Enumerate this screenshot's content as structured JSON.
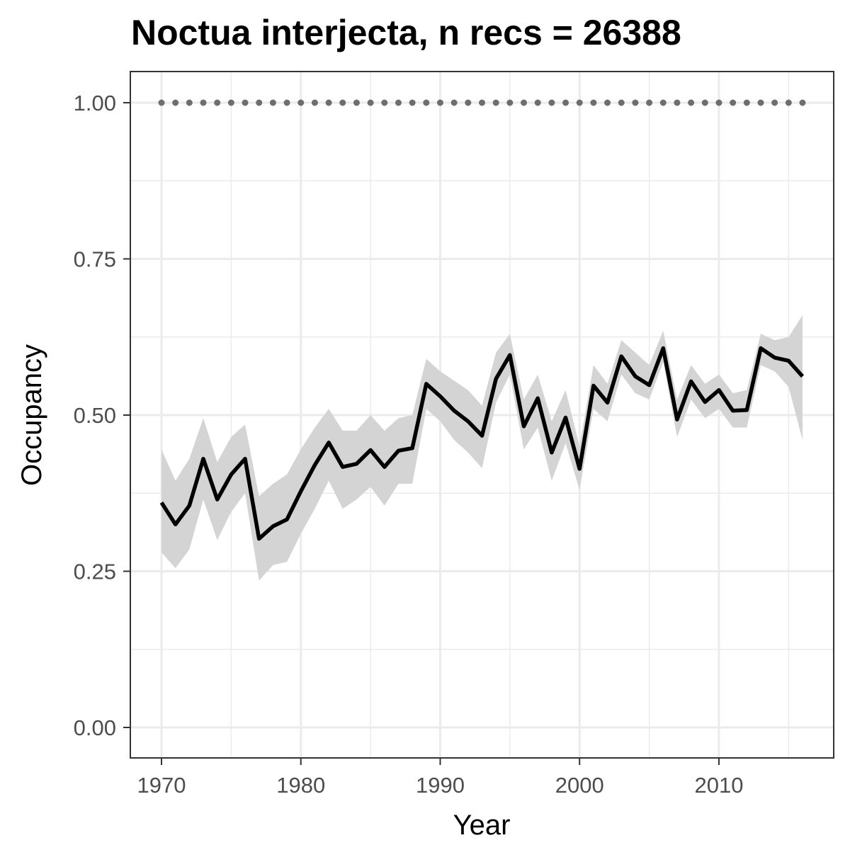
{
  "chart_data": {
    "type": "line",
    "title": "Noctua interjecta, n recs = 26388",
    "xlabel": "Year",
    "ylabel": "Occupancy",
    "xlim": [
      1970,
      2016
    ],
    "ylim": [
      0,
      1
    ],
    "x_ticks": [
      1970,
      1980,
      1990,
      2000,
      2010
    ],
    "x_tick_labels": [
      "1970",
      "1980",
      "1990",
      "2000",
      "2010"
    ],
    "y_ticks": [
      0,
      0.25,
      0.5,
      0.75,
      1
    ],
    "y_tick_labels": [
      "0.00",
      "0.25",
      "0.50",
      "0.75",
      "1.00"
    ],
    "grid": true,
    "colors": {
      "line": "#000000",
      "band": "#d4d4d4",
      "points": "#6e6e6e",
      "grid": "#ebebeb",
      "panel_border": "#333333"
    },
    "series": [
      {
        "style": "line-with-band",
        "x": [
          1970,
          1971,
          1972,
          1973,
          1974,
          1975,
          1976,
          1977,
          1978,
          1979,
          1980,
          1981,
          1982,
          1983,
          1984,
          1985,
          1986,
          1987,
          1988,
          1989,
          1990,
          1991,
          1992,
          1993,
          1994,
          1995,
          1996,
          1997,
          1998,
          1999,
          2000,
          2001,
          2002,
          2003,
          2004,
          2005,
          2006,
          2007,
          2008,
          2009,
          2010,
          2011,
          2012,
          2013,
          2014,
          2015,
          2016
        ],
        "y": [
          0.36,
          0.325,
          0.355,
          0.43,
          0.365,
          0.405,
          0.43,
          0.302,
          0.322,
          0.333,
          0.378,
          0.42,
          0.456,
          0.417,
          0.422,
          0.444,
          0.417,
          0.443,
          0.447,
          0.55,
          0.53,
          0.507,
          0.49,
          0.467,
          0.558,
          0.596,
          0.482,
          0.527,
          0.44,
          0.496,
          0.414,
          0.547,
          0.52,
          0.594,
          0.562,
          0.548,
          0.607,
          0.493,
          0.554,
          0.521,
          0.54,
          0.507,
          0.508,
          0.607,
          0.592,
          0.587,
          0.562
        ],
        "lower": [
          0.28,
          0.255,
          0.285,
          0.365,
          0.3,
          0.345,
          0.375,
          0.235,
          0.26,
          0.265,
          0.31,
          0.35,
          0.395,
          0.35,
          0.365,
          0.385,
          0.355,
          0.39,
          0.39,
          0.51,
          0.49,
          0.46,
          0.44,
          0.415,
          0.52,
          0.565,
          0.445,
          0.48,
          0.395,
          0.455,
          0.38,
          0.51,
          0.49,
          0.565,
          0.535,
          0.525,
          0.585,
          0.465,
          0.525,
          0.495,
          0.51,
          0.48,
          0.48,
          0.58,
          0.57,
          0.545,
          0.46
        ]
      },
      {
        "style": "points",
        "x": [
          1970,
          1971,
          1972,
          1973,
          1974,
          1975,
          1976,
          1977,
          1978,
          1979,
          1980,
          1981,
          1982,
          1983,
          1984,
          1985,
          1986,
          1987,
          1988,
          1989,
          1990,
          1991,
          1992,
          1993,
          1994,
          1995,
          1996,
          1997,
          1998,
          1999,
          2000,
          2001,
          2002,
          2003,
          2004,
          2005,
          2006,
          2007,
          2008,
          2009,
          2010,
          2011,
          2012,
          2013,
          2014,
          2015,
          2016
        ],
        "y": [
          1,
          1,
          1,
          1,
          1,
          1,
          1,
          1,
          1,
          1,
          1,
          1,
          1,
          1,
          1,
          1,
          1,
          1,
          1,
          1,
          1,
          1,
          1,
          1,
          1,
          1,
          1,
          1,
          1,
          1,
          1,
          1,
          1,
          1,
          1,
          1,
          1,
          1,
          1,
          1,
          1,
          1,
          1,
          1,
          1,
          1,
          1
        ]
      }
    ],
    "band_upper": [
      0.445,
      0.395,
      0.43,
      0.495,
      0.425,
      0.465,
      0.485,
      0.37,
      0.39,
      0.405,
      0.445,
      0.48,
      0.51,
      0.475,
      0.475,
      0.5,
      0.475,
      0.495,
      0.5,
      0.59,
      0.57,
      0.555,
      0.54,
      0.515,
      0.6,
      0.63,
      0.525,
      0.565,
      0.49,
      0.54,
      0.45,
      0.58,
      0.55,
      0.62,
      0.6,
      0.58,
      0.635,
      0.525,
      0.58,
      0.55,
      0.565,
      0.535,
      0.54,
      0.63,
      0.62,
      0.625,
      0.66
    ]
  }
}
